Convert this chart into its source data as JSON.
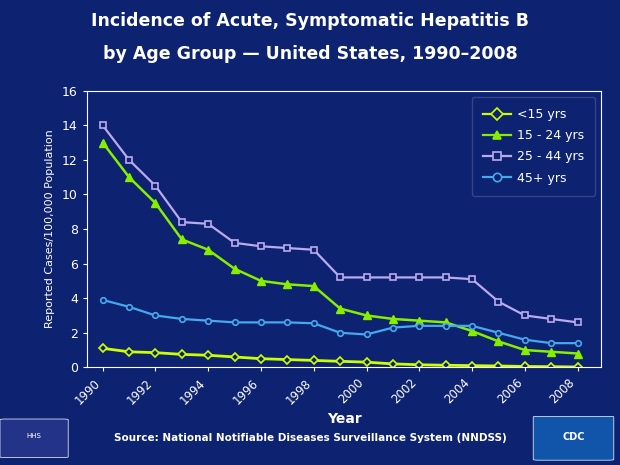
{
  "title_line1": "Incidence of Acute, Symptomatic Hepatitis B",
  "title_line2": "by Age Group — United States, 1990–2008",
  "xlabel": "Year",
  "ylabel": "Reported Cases/100,000 Population",
  "source": "Source: National Notifiable Diseases Surveillance System (NNDSS)",
  "background_color": "#0d2270",
  "plot_bg_color": "#0d2270",
  "title_color": "#ffffff",
  "teal_bar_color": "#00b8b0",
  "years": [
    1990,
    1991,
    1992,
    1993,
    1994,
    1995,
    1996,
    1997,
    1998,
    1999,
    2000,
    2001,
    2002,
    2003,
    2004,
    2005,
    2006,
    2007,
    2008
  ],
  "lt15": [
    1.1,
    0.9,
    0.85,
    0.75,
    0.7,
    0.6,
    0.5,
    0.45,
    0.4,
    0.35,
    0.3,
    0.2,
    0.15,
    0.12,
    0.1,
    0.08,
    0.05,
    0.04,
    0.02
  ],
  "age15_24": [
    13.0,
    11.0,
    9.5,
    7.4,
    6.8,
    5.7,
    5.0,
    4.8,
    4.7,
    3.4,
    3.0,
    2.8,
    2.7,
    2.6,
    2.1,
    1.5,
    1.0,
    0.9,
    0.8
  ],
  "age25_44": [
    14.0,
    12.0,
    10.5,
    8.4,
    8.3,
    7.2,
    7.0,
    6.9,
    6.8,
    5.2,
    5.2,
    5.2,
    5.2,
    5.2,
    5.1,
    3.8,
    3.0,
    2.8,
    2.6
  ],
  "age45plus": [
    3.9,
    3.5,
    3.0,
    2.8,
    2.7,
    2.6,
    2.6,
    2.6,
    2.55,
    2.0,
    1.9,
    2.3,
    2.4,
    2.4,
    2.4,
    2.0,
    1.6,
    1.4,
    1.4
  ],
  "color_lt15": "#ccff00",
  "color_15_24": "#88ee00",
  "color_25_44": "#bbaaee",
  "color_45plus": "#44aaee",
  "ylim": [
    0,
    16
  ],
  "yticks": [
    0,
    2,
    4,
    6,
    8,
    10,
    12,
    14,
    16
  ],
  "legend_labels": [
    "<15 yrs",
    "15 - 24 yrs",
    "25 - 44 yrs",
    "45+ yrs"
  ]
}
